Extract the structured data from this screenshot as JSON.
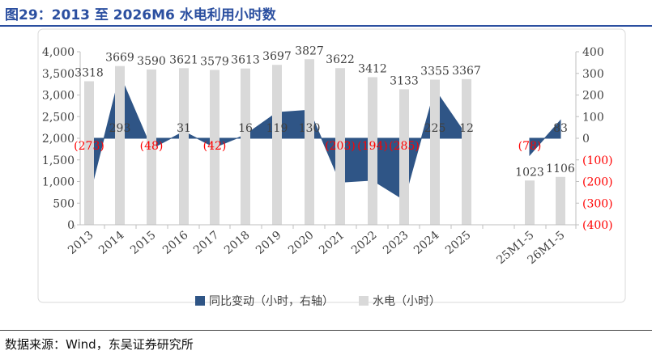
{
  "figure": {
    "title": "图29：2013 至 2026M6 水电利用小时数",
    "source": "数据来源：Wind，东吴证券研究所"
  },
  "chart_data": {
    "type": "bar",
    "categories": [
      "2013",
      "2014",
      "2015",
      "2016",
      "2017",
      "2018",
      "2019",
      "2020",
      "2021",
      "2022",
      "2023",
      "2024",
      "2025",
      "25M1-5",
      "26M1-5"
    ],
    "series": [
      {
        "name": "水电（小时）",
        "type": "bar",
        "axis": "left",
        "values": [
          3318,
          3669,
          3590,
          3621,
          3579,
          3613,
          3697,
          3827,
          3622,
          3412,
          3133,
          3355,
          3367,
          1023,
          1106
        ],
        "labels": [
          "3318",
          "3669",
          "3590",
          "3621",
          "3579",
          "3613",
          "3697",
          "3827",
          "3622",
          "3412",
          "3133",
          "3355",
          "3367",
          "1023",
          "1106"
        ],
        "color": "#d9d9d9"
      },
      {
        "name": "同比变动（小时，右轴）",
        "type": "area",
        "axis": "right",
        "values": [
          -273,
          293,
          -48,
          31,
          -42,
          16,
          119,
          130,
          -203,
          -194,
          -285,
          225,
          12,
          -78,
          83
        ],
        "labels": [
          "(273)",
          "293",
          "(48)",
          "31",
          "(42)",
          "16",
          "119",
          "130",
          "(203)",
          "(194)",
          "(285)",
          "225",
          "12",
          "(78)",
          "83"
        ],
        "color": "#2f5586",
        "negative_label_color": "#ff0000"
      }
    ],
    "y_left": {
      "min": 0,
      "max": 4000,
      "ticks": [
        "0",
        "500",
        "1,000",
        "1,500",
        "2,000",
        "2,500",
        "3,000",
        "3,500",
        "4,000"
      ]
    },
    "y_right": {
      "min": -400,
      "max": 400,
      "ticks": [
        "(400)",
        "(300)",
        "(200)",
        "(100)",
        "0",
        "100",
        "200",
        "300",
        "400"
      ]
    },
    "grid": false,
    "legend_position": "bottom"
  }
}
